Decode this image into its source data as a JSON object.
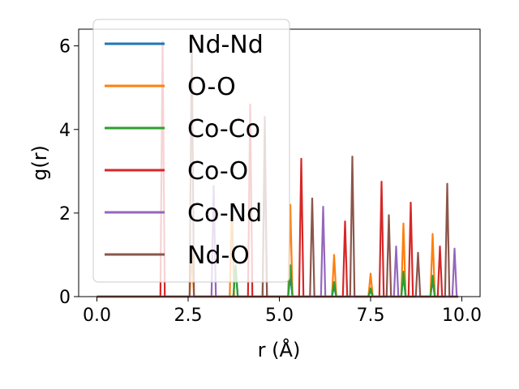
{
  "chart_data": {
    "type": "line",
    "xlabel": "r (Å)",
    "ylabel": "g(r)",
    "xlim": [
      -0.5,
      10.5
    ],
    "ylim": [
      0,
      6.4
    ],
    "xticks": [
      "0.0",
      "2.5",
      "5.0",
      "7.5",
      "10.0"
    ],
    "xtick_values": [
      0,
      2.5,
      5,
      7.5,
      10
    ],
    "yticks": [
      "0",
      "2",
      "4",
      "6"
    ],
    "ytick_values": [
      0,
      2,
      4,
      6
    ],
    "grid": false,
    "legend_position": "top-left",
    "series": [
      {
        "name": "Nd-Nd",
        "color": "#1f77b4",
        "peaks": [
          [
            3.8,
            0.7
          ],
          [
            5.3,
            0.5
          ],
          [
            6.5,
            0.25
          ],
          [
            7.5,
            0.15
          ],
          [
            8.4,
            0.5
          ],
          [
            9.2,
            0.4
          ]
        ]
      },
      {
        "name": "O-O",
        "color": "#ff7f0e",
        "peaks": [
          [
            2.6,
            1.0
          ],
          [
            3.7,
            2.2
          ],
          [
            5.3,
            2.2
          ],
          [
            6.5,
            1.0
          ],
          [
            7.5,
            0.55
          ],
          [
            8.4,
            1.75
          ],
          [
            9.2,
            1.5
          ]
        ]
      },
      {
        "name": "Co-Co",
        "color": "#2ca02c",
        "peaks": [
          [
            3.8,
            0.75
          ],
          [
            5.3,
            0.75
          ],
          [
            6.5,
            0.35
          ],
          [
            7.5,
            0.2
          ],
          [
            8.4,
            0.6
          ],
          [
            9.2,
            0.5
          ]
        ]
      },
      {
        "name": "Co-O",
        "color": "#d62728",
        "peaks": [
          [
            1.8,
            6.1
          ],
          [
            4.2,
            4.6
          ],
          [
            5.6,
            3.3
          ],
          [
            6.8,
            1.8
          ],
          [
            7.8,
            2.75
          ],
          [
            8.6,
            2.25
          ],
          [
            9.4,
            1.2
          ]
        ]
      },
      {
        "name": "Co-Nd",
        "color": "#9467bd",
        "peaks": [
          [
            3.2,
            2.65
          ],
          [
            4.6,
            3.7
          ],
          [
            6.2,
            2.15
          ],
          [
            8.2,
            1.2
          ],
          [
            9.8,
            1.15
          ]
        ]
      },
      {
        "name": "Nd-O",
        "color": "#8c564b",
        "peaks": [
          [
            2.6,
            6.2
          ],
          [
            4.6,
            4.3
          ],
          [
            5.9,
            2.35
          ],
          [
            7.0,
            3.35
          ],
          [
            8.0,
            1.95
          ],
          [
            8.8,
            1.05
          ],
          [
            9.6,
            2.7
          ]
        ]
      }
    ]
  }
}
